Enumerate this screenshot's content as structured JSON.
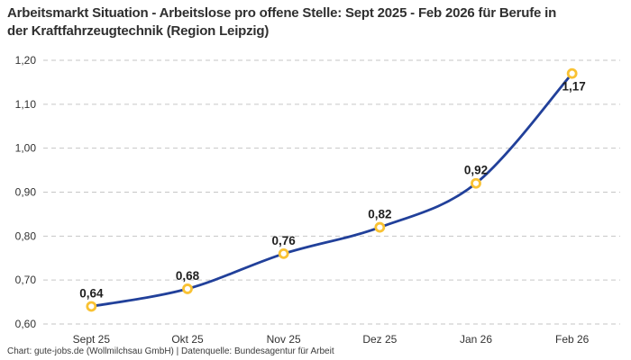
{
  "title": "Arbeitsmarkt Situation - Arbeitslose pro offene Stelle: Sept 2025 - Feb 2026 für Berufe in der Kraftfahrzeugtechnik (Region Leipzig)",
  "footer": "Chart: gute-jobs.de (Wollmilchsau GmbH) | Datenquelle: Bundesagentur für Arbeit",
  "chart_data": {
    "type": "line",
    "categories": [
      "Sept 25",
      "Okt 25",
      "Nov 25",
      "Dez 25",
      "Jan 26",
      "Feb 26"
    ],
    "values": [
      0.64,
      0.68,
      0.76,
      0.82,
      0.92,
      1.17
    ],
    "point_labels": [
      "0,64",
      "0,68",
      "0,76",
      "0,82",
      "0,92",
      "1,17"
    ],
    "ytick_labels": [
      "0,60",
      "0,70",
      "0,80",
      "0,90",
      "1,00",
      "1,10",
      "1,20"
    ],
    "yticks": [
      0.6,
      0.7,
      0.8,
      0.9,
      1.0,
      1.1,
      1.2
    ],
    "ylim": [
      0.6,
      1.2
    ],
    "grid": "dashed horizontal",
    "legend": "none",
    "colors": {
      "line": "#21409a",
      "marker_ring": "#f9c233",
      "marker_fill": "#ffffff",
      "gridline": "#c6c6c6",
      "tick_text": "#333333",
      "title_text": "#2f2f2f",
      "background": "#ffffff"
    }
  }
}
